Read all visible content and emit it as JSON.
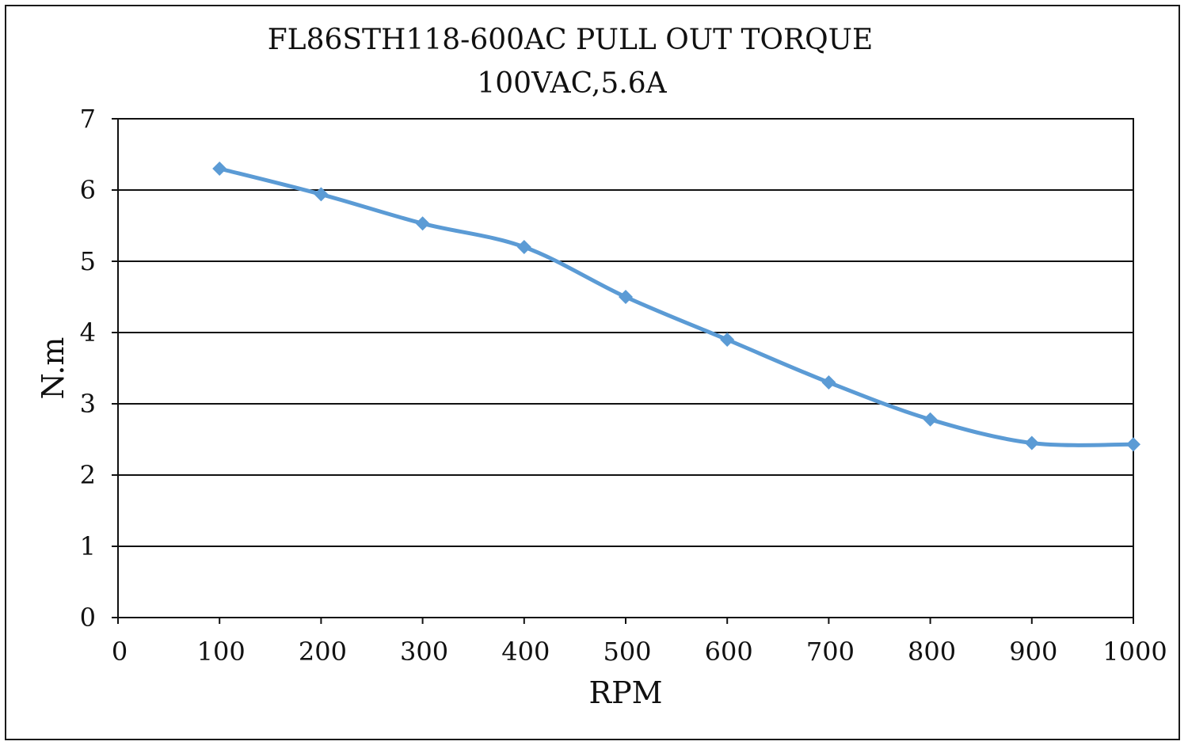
{
  "chart_data": {
    "type": "line",
    "title": "FL86STH118-600AC PULL OUT TORQUE",
    "subtitle": "100VAC,5.6A",
    "xlabel": "RPM",
    "ylabel": "N.m",
    "xlim": [
      0,
      1000
    ],
    "ylim": [
      0,
      7
    ],
    "x_ticks": [
      0,
      100,
      200,
      300,
      400,
      500,
      600,
      700,
      800,
      900,
      1000
    ],
    "y_ticks": [
      0,
      1,
      2,
      3,
      4,
      5,
      6,
      7
    ],
    "grid": "horizontal",
    "series": [
      {
        "color": "#5b9bd5",
        "marker": "diamond",
        "x": [
          100,
          200,
          300,
          400,
          500,
          600,
          700,
          800,
          900,
          1000
        ],
        "y": [
          6.3,
          5.94,
          5.53,
          5.2,
          4.5,
          3.9,
          3.3,
          2.78,
          2.45,
          2.43
        ]
      }
    ]
  }
}
